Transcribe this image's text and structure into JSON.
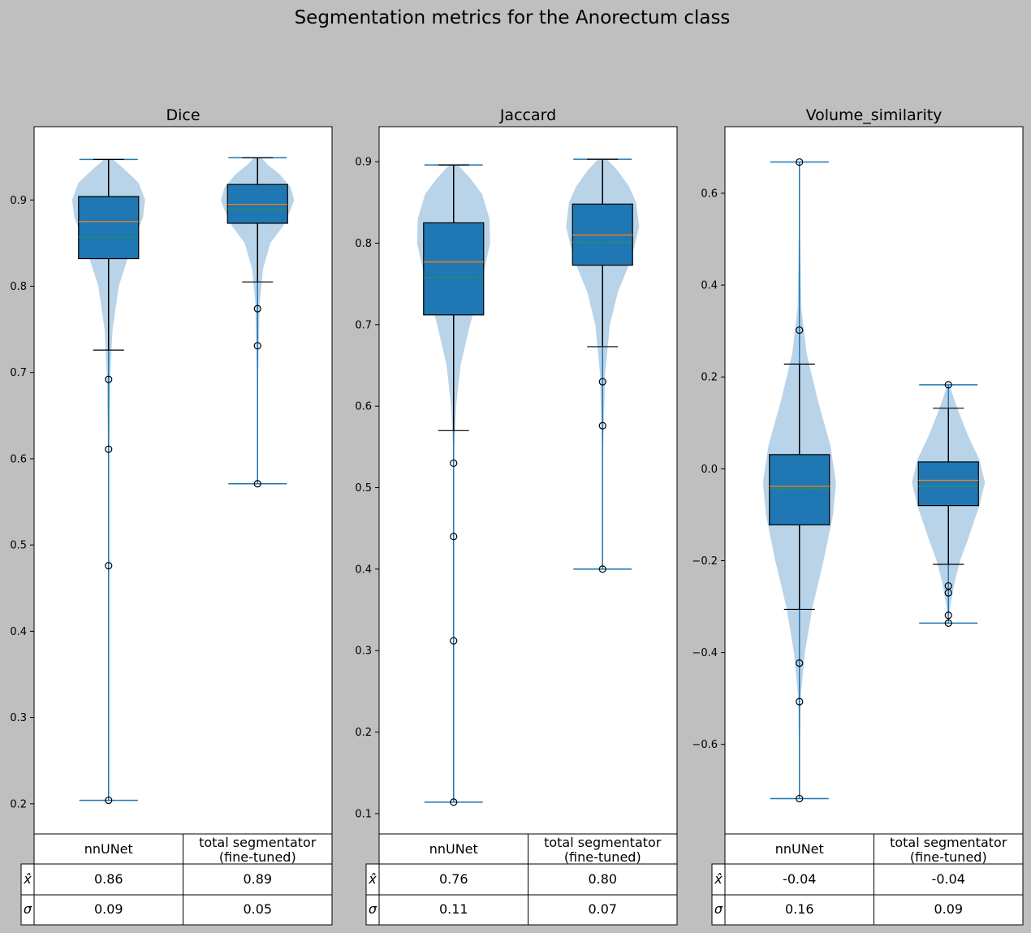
{
  "title": "Segmentation metrics for the Anorectum class",
  "colors": {
    "background": "#bfbfbf",
    "violin": "#b9d3e8",
    "box": "#1f77b4",
    "whisker_line": "#1f77b4",
    "median": "#ff7f0e",
    "mean": "#2ca02c"
  },
  "table_row_labels": [
    "x̂",
    "σ"
  ],
  "chart_data": [
    {
      "type": "box",
      "title": "Dice",
      "categories": [
        "nnUNet",
        "total segmentator\n(fine-tuned)"
      ],
      "ylim": [
        0.165,
        0.985
      ],
      "yticks": [
        0.2,
        0.3,
        0.4,
        0.5,
        0.6,
        0.7,
        0.8,
        0.9
      ],
      "series": [
        {
          "category": "nnUNet",
          "min": 0.204,
          "max": 0.947,
          "q1": 0.832,
          "median": 0.875,
          "mean": 0.857,
          "q3": 0.904,
          "whisker_low": 0.726,
          "whisker_high": 0.947,
          "outliers": [
            0.692,
            0.611,
            0.476,
            0.204
          ],
          "violin": [
            [
              0.204,
              0
            ],
            [
              0.45,
              0.005
            ],
            [
              0.6,
              0.015
            ],
            [
              0.7,
              0.05
            ],
            [
              0.75,
              0.11
            ],
            [
              0.8,
              0.28
            ],
            [
              0.85,
              0.66
            ],
            [
              0.88,
              0.94
            ],
            [
              0.9,
              1.0
            ],
            [
              0.92,
              0.82
            ],
            [
              0.935,
              0.45
            ],
            [
              0.947,
              0.12
            ]
          ]
        },
        {
          "category": "total segmentator (fine-tuned)",
          "min": 0.571,
          "max": 0.949,
          "q1": 0.873,
          "median": 0.895,
          "mean": 0.889,
          "q3": 0.918,
          "whisker_low": 0.805,
          "whisker_high": 0.949,
          "outliers": [
            0.774,
            0.731,
            0.571
          ],
          "violin": [
            [
              0.571,
              0
            ],
            [
              0.7,
              0.02
            ],
            [
              0.78,
              0.06
            ],
            [
              0.82,
              0.15
            ],
            [
              0.85,
              0.35
            ],
            [
              0.87,
              0.7
            ],
            [
              0.89,
              0.92
            ],
            [
              0.9,
              1.0
            ],
            [
              0.915,
              0.9
            ],
            [
              0.93,
              0.6
            ],
            [
              0.94,
              0.3
            ],
            [
              0.949,
              0.1
            ]
          ]
        }
      ],
      "table": {
        "mean": [
          "0.86",
          "0.89"
        ],
        "std": [
          "0.09",
          "0.05"
        ]
      }
    },
    {
      "type": "box",
      "title": "Jaccard",
      "categories": [
        "nnUNet",
        "total segmentator\n(fine-tuned)"
      ],
      "ylim": [
        0.075,
        0.943
      ],
      "yticks": [
        0.1,
        0.2,
        0.3,
        0.4,
        0.5,
        0.6,
        0.7,
        0.8,
        0.9
      ],
      "series": [
        {
          "category": "nnUNet",
          "min": 0.114,
          "max": 0.896,
          "q1": 0.712,
          "median": 0.777,
          "mean": 0.758,
          "q3": 0.825,
          "whisker_low": 0.57,
          "whisker_high": 0.896,
          "outliers": [
            0.53,
            0.44,
            0.312,
            0.114
          ],
          "violin": [
            [
              0.114,
              0
            ],
            [
              0.4,
              0.004
            ],
            [
              0.55,
              0.02
            ],
            [
              0.6,
              0.07
            ],
            [
              0.65,
              0.19
            ],
            [
              0.7,
              0.45
            ],
            [
              0.75,
              0.75
            ],
            [
              0.8,
              1.0
            ],
            [
              0.83,
              0.98
            ],
            [
              0.86,
              0.78
            ],
            [
              0.88,
              0.45
            ],
            [
              0.896,
              0.12
            ]
          ]
        },
        {
          "category": "total segmentator (fine-tuned)",
          "min": 0.4,
          "max": 0.903,
          "q1": 0.773,
          "median": 0.81,
          "mean": 0.801,
          "q3": 0.848,
          "whisker_low": 0.673,
          "whisker_high": 0.903,
          "outliers": [
            0.63,
            0.576,
            0.4
          ],
          "violin": [
            [
              0.4,
              0
            ],
            [
              0.55,
              0.02
            ],
            [
              0.64,
              0.07
            ],
            [
              0.7,
              0.2
            ],
            [
              0.74,
              0.42
            ],
            [
              0.78,
              0.78
            ],
            [
              0.82,
              1.0
            ],
            [
              0.85,
              0.92
            ],
            [
              0.87,
              0.72
            ],
            [
              0.89,
              0.4
            ],
            [
              0.903,
              0.12
            ]
          ]
        }
      ],
      "table": {
        "mean": [
          "0.76",
          "0.80"
        ],
        "std": [
          "0.11",
          "0.07"
        ]
      }
    },
    {
      "type": "box",
      "title": "Volume_similarity",
      "categories": [
        "nnUNet",
        "total segmentator\n(fine-tuned)"
      ],
      "ylim": [
        -0.795,
        0.745
      ],
      "yticks": [
        -0.6,
        -0.4,
        -0.2,
        0.0,
        0.2,
        0.4,
        0.6
      ],
      "series": [
        {
          "category": "nnUNet",
          "min": -0.718,
          "max": 0.668,
          "q1": -0.122,
          "median": -0.038,
          "mean": -0.044,
          "q3": 0.031,
          "whisker_low": -0.306,
          "whisker_high": 0.228,
          "outliers": [
            0.302,
            -0.423,
            -0.507,
            -0.718,
            0.668
          ],
          "violin": [
            [
              -0.718,
              0
            ],
            [
              -0.5,
              0.03
            ],
            [
              -0.4,
              0.15
            ],
            [
              -0.3,
              0.36
            ],
            [
              -0.2,
              0.66
            ],
            [
              -0.1,
              0.92
            ],
            [
              -0.03,
              1.0
            ],
            [
              0.05,
              0.85
            ],
            [
              0.15,
              0.5
            ],
            [
              0.25,
              0.2
            ],
            [
              0.35,
              0.05
            ],
            [
              0.5,
              0.02
            ],
            [
              0.668,
              0
            ]
          ]
        },
        {
          "category": "total segmentator (fine-tuned)",
          "min": -0.336,
          "max": 0.183,
          "q1": -0.08,
          "median": -0.025,
          "mean": -0.038,
          "q3": 0.015,
          "whisker_low": -0.208,
          "whisker_high": 0.132,
          "outliers": [
            0.183,
            -0.255,
            -0.27,
            -0.319,
            -0.336
          ],
          "violin": [
            [
              -0.336,
              0
            ],
            [
              -0.3,
              0.05
            ],
            [
              -0.25,
              0.16
            ],
            [
              -0.2,
              0.32
            ],
            [
              -0.15,
              0.55
            ],
            [
              -0.08,
              0.85
            ],
            [
              -0.03,
              1.0
            ],
            [
              0.02,
              0.85
            ],
            [
              0.07,
              0.55
            ],
            [
              0.12,
              0.3
            ],
            [
              0.16,
              0.12
            ],
            [
              0.183,
              0.03
            ]
          ]
        }
      ],
      "table": {
        "mean": [
          "-0.04",
          "-0.04"
        ],
        "std": [
          "0.16",
          "0.09"
        ]
      }
    }
  ]
}
